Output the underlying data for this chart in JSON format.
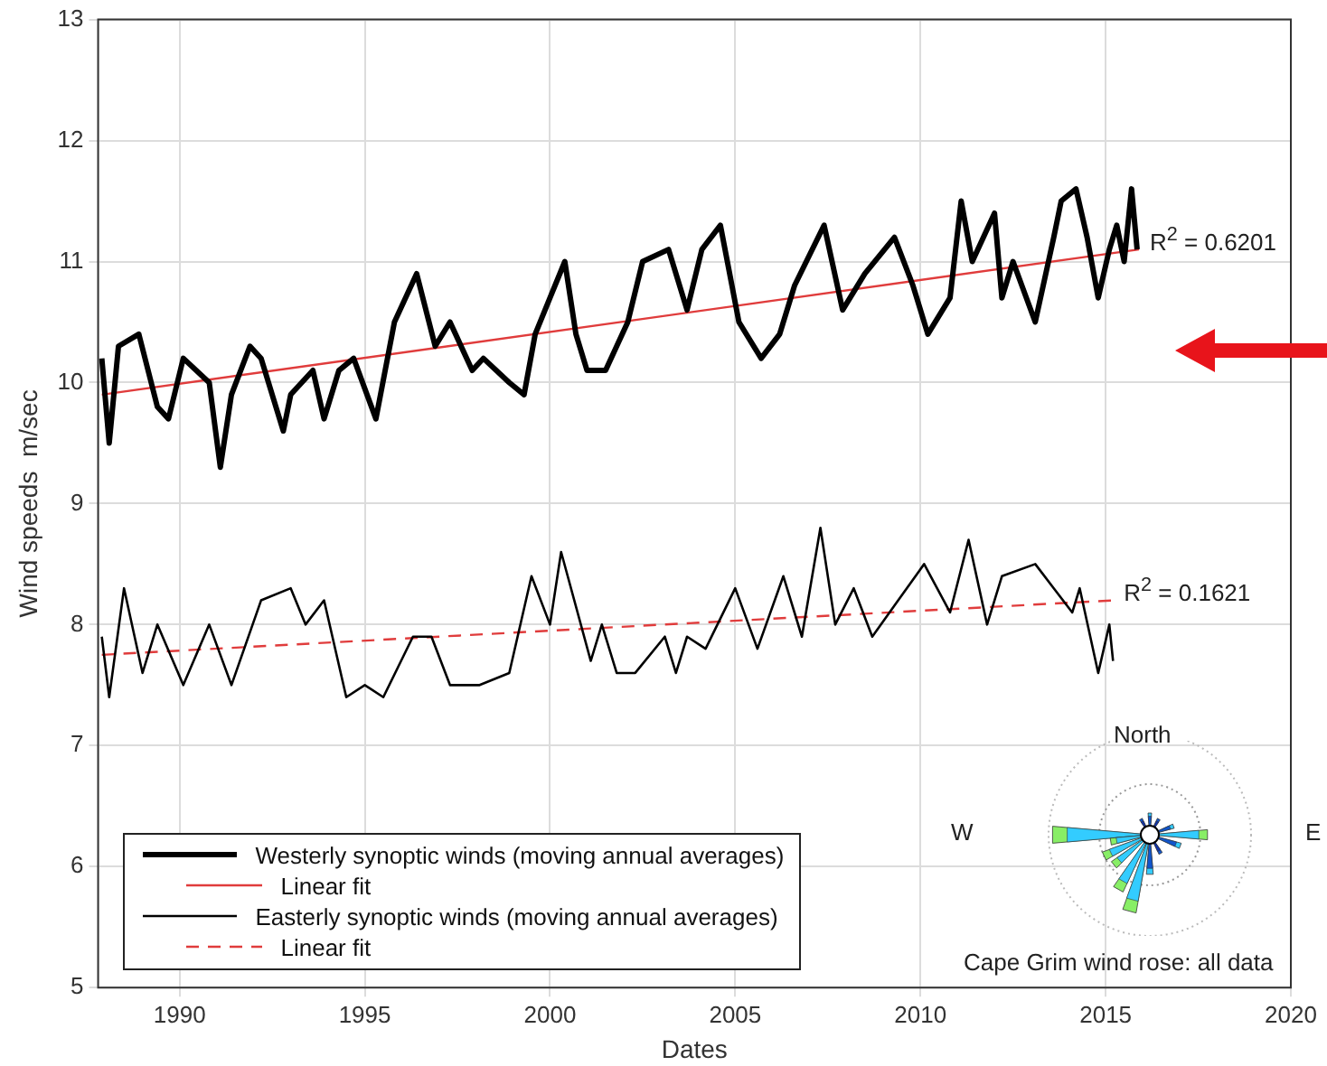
{
  "chart_data": {
    "type": "line",
    "xlabel": "Dates",
    "ylabel": "Wind speeds  m/sec",
    "xlim": [
      1987.8,
      2020
    ],
    "xticks": [
      1990,
      1995,
      2000,
      2005,
      2010,
      2015,
      2020
    ],
    "ylim": [
      5,
      13
    ],
    "yticks": [
      5,
      6,
      7,
      8,
      9,
      10,
      11,
      12,
      13
    ],
    "grid": true,
    "legend": "bottom left",
    "marker": "none",
    "series": [
      {
        "name": "Westerly synoptic winds (moving annual averages)",
        "color": "#000000",
        "line_style": "solid",
        "x": [
          1987.9,
          1988.1,
          1988.35,
          1988.9,
          1989.4,
          1989.7,
          1990.1,
          1990.8,
          1991.1,
          1991.4,
          1991.9,
          1992.2,
          1992.8,
          1993.0,
          1993.6,
          1993.9,
          1994.3,
          1994.7,
          1995.3,
          1995.8,
          1996.4,
          1996.9,
          1997.3,
          1997.9,
          1998.2,
          1998.9,
          1999.3,
          1999.6,
          2000.0,
          2000.4,
          2000.7,
          2001.0,
          2001.5,
          2002.1,
          2002.5,
          2003.2,
          2003.7,
          2004.1,
          2004.6,
          2005.1,
          2005.7,
          2006.2,
          2006.6,
          2007.4,
          2007.9,
          2008.5,
          2009.3,
          2009.8,
          2010.2,
          2010.8,
          2011.1,
          2011.4,
          2012.0,
          2012.2,
          2012.5,
          2013.1,
          2013.6,
          2013.8,
          2014.2,
          2014.5,
          2014.8,
          2015.1,
          2015.3,
          2015.5,
          2015.7,
          2015.85
        ],
        "values": [
          10.2,
          9.5,
          10.3,
          10.4,
          9.8,
          9.7,
          10.2,
          10.0,
          9.3,
          9.9,
          10.3,
          10.2,
          9.6,
          9.9,
          10.1,
          9.7,
          10.1,
          10.2,
          9.7,
          10.5,
          10.9,
          10.3,
          10.5,
          10.1,
          10.2,
          10.0,
          9.9,
          10.4,
          10.7,
          11.0,
          10.4,
          10.1,
          10.1,
          10.5,
          11.0,
          11.1,
          10.6,
          11.1,
          11.3,
          10.5,
          10.2,
          10.4,
          10.8,
          11.3,
          10.6,
          10.9,
          11.2,
          10.8,
          10.4,
          10.7,
          11.5,
          11.0,
          11.4,
          10.7,
          11.0,
          10.5,
          11.2,
          11.5,
          11.6,
          11.2,
          10.7,
          11.1,
          11.3,
          11.0,
          11.6,
          11.1
        ]
      },
      {
        "name": "Linear fit",
        "color": "#e03c3c",
        "line_style": "solid",
        "x": [
          1987.9,
          2015.9
        ],
        "values": [
          9.9,
          11.1
        ]
      },
      {
        "name": "Easterly synoptic winds (moving annual averages)",
        "color": "#000000",
        "line_style": "solid",
        "x": [
          1987.9,
          1988.1,
          1988.5,
          1989.0,
          1989.4,
          1990.1,
          1990.8,
          1991.4,
          1992.2,
          1993.0,
          1993.4,
          1993.9,
          1994.5,
          1995.0,
          1995.5,
          1996.3,
          1996.8,
          1997.3,
          1998.1,
          1998.9,
          1999.5,
          2000.0,
          2000.3,
          2001.1,
          2001.4,
          2001.8,
          2002.3,
          2003.1,
          2003.4,
          2003.7,
          2004.2,
          2005.0,
          2005.6,
          2006.3,
          2006.8,
          2007.3,
          2007.7,
          2008.2,
          2008.7,
          2009.4,
          2010.1,
          2010.8,
          2011.3,
          2011.8,
          2012.2,
          2013.1,
          2013.6,
          2014.1,
          2014.3,
          2014.8,
          2015.1,
          2015.2
        ],
        "values": [
          7.9,
          7.4,
          8.3,
          7.6,
          8.0,
          7.5,
          8.0,
          7.5,
          8.2,
          8.3,
          8.0,
          8.2,
          7.4,
          7.5,
          7.4,
          7.9,
          7.9,
          7.5,
          7.5,
          7.6,
          8.4,
          8.0,
          8.6,
          7.7,
          8.0,
          7.6,
          7.6,
          7.9,
          7.6,
          7.9,
          7.8,
          8.3,
          7.8,
          8.4,
          7.9,
          8.8,
          8.0,
          8.3,
          7.9,
          8.2,
          8.5,
          8.1,
          8.7,
          8.0,
          8.4,
          8.5,
          8.3,
          8.1,
          8.3,
          7.6,
          8.0,
          7.7
        ]
      },
      {
        "name": "Linear fit",
        "color": "#e03c3c",
        "line_style": "dashed",
        "x": [
          1987.9,
          2015.2
        ],
        "values": [
          7.75,
          8.2
        ]
      }
    ],
    "annotations": [
      {
        "text": "R$^{2}$ = 0.6201",
        "x": 2015.9,
        "y": 11.1
      },
      {
        "text": "R$^{2}$ = 0.1621",
        "x": 2015.2,
        "y": 8.2
      },
      "North",
      "W",
      "E",
      "Cape Grim wind rose: all data"
    ]
  }
}
